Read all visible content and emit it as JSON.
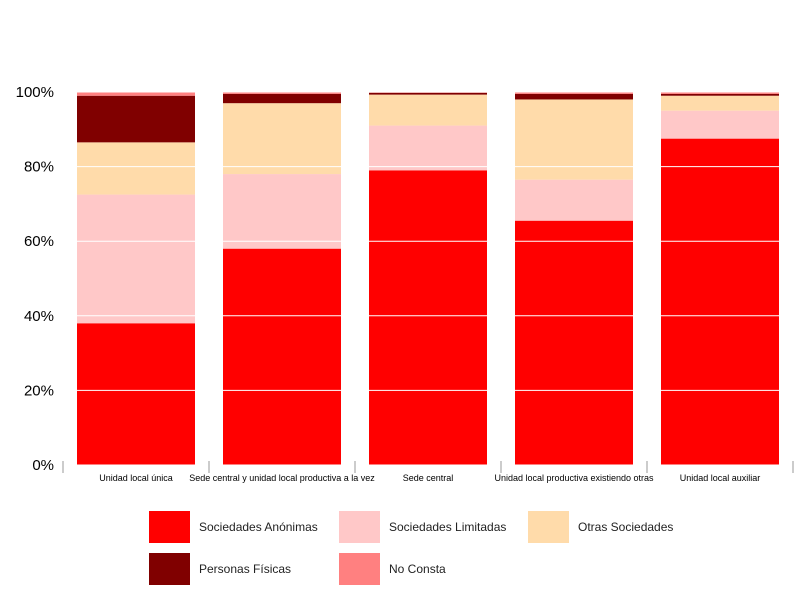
{
  "chart_data": {
    "type": "bar",
    "stacked": true,
    "percent": true,
    "categories": [
      "Unidad local única",
      "Sede central y unidad local productiva a la vez",
      "Sede central",
      "Unidad local productiva existiendo otras",
      "Unidad local auxiliar"
    ],
    "series": [
      {
        "name": "Sociedades Anónimas",
        "color": "#ff0000",
        "values": [
          38,
          58,
          79,
          65.5,
          87.5
        ]
      },
      {
        "name": "Sociedades Limitadas",
        "color": "#ffc8c8",
        "values": [
          34.5,
          20,
          12,
          11,
          7.5
        ]
      },
      {
        "name": "Otras Sociedades",
        "color": "#ffdbaa",
        "values": [
          14,
          19,
          8.3,
          21.5,
          4
        ]
      },
      {
        "name": "Personas Físicas",
        "color": "#800000",
        "values": [
          12.5,
          2.5,
          0.5,
          1.5,
          0.5
        ]
      },
      {
        "name": "No Consta",
        "color": "#ff8080",
        "values": [
          1,
          0.5,
          0.2,
          0.5,
          0.5
        ]
      }
    ],
    "ylim": [
      0,
      100
    ],
    "yticks": [
      "0%",
      "20%",
      "40%",
      "60%",
      "80%",
      "100%"
    ],
    "grid": true,
    "legend_position": "bottom"
  }
}
